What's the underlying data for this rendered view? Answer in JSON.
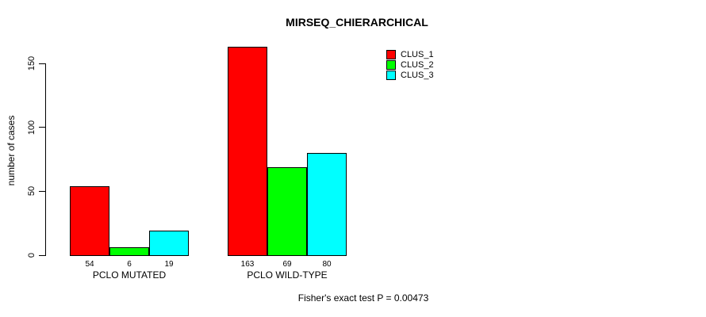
{
  "title": "MIRSEQ_CHIERARCHICAL",
  "footer": "Fisher's exact test P = 0.00473",
  "chart_data": {
    "type": "bar",
    "grouped": true,
    "title": "MIRSEQ_CHIERARCHICAL",
    "xlabel": "",
    "ylabel": "number of cases",
    "categories": [
      "PCLO MUTATED",
      "PCLO WILD-TYPE"
    ],
    "series": [
      {
        "name": "CLUS_1",
        "color": "#ff0000",
        "values": [
          54,
          163
        ]
      },
      {
        "name": "CLUS_2",
        "color": "#00ff00",
        "values": [
          6,
          69
        ]
      },
      {
        "name": "CLUS_3",
        "color": "#00ffff",
        "values": [
          19,
          80
        ]
      }
    ],
    "bar_value_labels": [
      [
        "54",
        "6",
        "19"
      ],
      [
        "163",
        "69",
        "80"
      ]
    ],
    "yticks": [
      0,
      50,
      100,
      150
    ],
    "ylim": [
      0,
      170
    ],
    "grid": false,
    "legend_position": "top-right",
    "annotation": "Fisher's exact test P = 0.00473"
  }
}
